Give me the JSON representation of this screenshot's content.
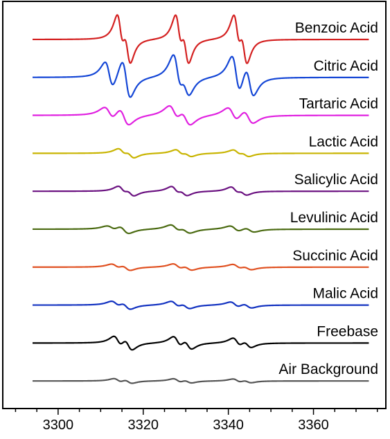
{
  "chart_data": {
    "type": "line",
    "title": "",
    "xlabel": "",
    "ylabel": "",
    "xlim": [
      3287,
      3377
    ],
    "x_ticks": [
      3300,
      3320,
      3340,
      3360
    ],
    "x_tick_labels": [
      "3300",
      "3320",
      "3340",
      "3360"
    ],
    "x_minor_step": 5,
    "x_range_plotted": [
      3294,
      3373
    ],
    "stacked_offset_traces": true,
    "grid": false,
    "legend": "none (series labels placed at right above each trace)",
    "series": [
      {
        "name": "Benzoic Acid",
        "color": "#d42020",
        "lines": [
          [
            3314.6,
            1.0
          ],
          [
            3316.3,
            0.95
          ],
          [
            3328.3,
            1.0
          ],
          [
            3330.0,
            0.95
          ],
          [
            3342.0,
            1.0
          ],
          [
            3343.7,
            0.95
          ]
        ],
        "width": 0.8
      },
      {
        "name": "Citric Acid",
        "color": "#1446d6",
        "lines": [
          [
            3312.0,
            0.7
          ],
          [
            3316.0,
            1.0
          ],
          [
            3328.0,
            1.0
          ],
          [
            3330.0,
            0.6
          ],
          [
            3341.8,
            1.0
          ],
          [
            3345.0,
            0.8
          ]
        ],
        "width": 1.0
      },
      {
        "name": "Tartaric Acid",
        "color": "#e020e0",
        "lines": [
          [
            3312.0,
            0.33
          ],
          [
            3315.5,
            0.45
          ],
          [
            3327.2,
            0.4
          ],
          [
            3330.0,
            0.4
          ],
          [
            3341.0,
            0.35
          ],
          [
            3344.7,
            0.35
          ]
        ],
        "width": 1.2
      },
      {
        "name": "Lactic Acid",
        "color": "#c8b400",
        "lines": [
          [
            3315.0,
            0.18
          ],
          [
            3317.0,
            0.18
          ],
          [
            3328.5,
            0.15
          ],
          [
            3330.5,
            0.12
          ],
          [
            3342.0,
            0.14
          ],
          [
            3344.0,
            0.12
          ]
        ],
        "width": 1.0
      },
      {
        "name": "Salicylic Acid",
        "color": "#6a1080",
        "lines": [
          [
            3315.0,
            0.2
          ],
          [
            3317.0,
            0.18
          ],
          [
            3327.5,
            0.2
          ],
          [
            3329.5,
            0.16
          ],
          [
            3341.5,
            0.18
          ],
          [
            3343.5,
            0.14
          ]
        ],
        "width": 1.0
      },
      {
        "name": "Levulinic Acid",
        "color": "#4a6a10",
        "lines": [
          [
            3312.5,
            0.12
          ],
          [
            3315.5,
            0.2
          ],
          [
            3327.5,
            0.18
          ],
          [
            3330.0,
            0.15
          ],
          [
            3341.5,
            0.15
          ],
          [
            3345.0,
            0.12
          ]
        ],
        "width": 1.2
      },
      {
        "name": "Succinic Acid",
        "color": "#e05020",
        "lines": [
          [
            3313.5,
            0.12
          ],
          [
            3316.0,
            0.14
          ],
          [
            3328.0,
            0.14
          ],
          [
            3330.5,
            0.12
          ],
          [
            3342.0,
            0.12
          ],
          [
            3344.5,
            0.1
          ]
        ],
        "width": 1.1
      },
      {
        "name": "Malic Acid",
        "color": "#1030c0",
        "lines": [
          [
            3313.5,
            0.15
          ],
          [
            3316.0,
            0.18
          ],
          [
            3327.5,
            0.16
          ],
          [
            3330.0,
            0.14
          ],
          [
            3341.5,
            0.14
          ],
          [
            3344.5,
            0.12
          ]
        ],
        "width": 1.1
      },
      {
        "name": "Freebase",
        "color": "#000000",
        "lines": [
          [
            3314.0,
            0.28
          ],
          [
            3316.5,
            0.3
          ],
          [
            3328.0,
            0.28
          ],
          [
            3330.5,
            0.25
          ],
          [
            3342.0,
            0.22
          ],
          [
            3344.5,
            0.18
          ]
        ],
        "width": 1.0
      },
      {
        "name": "Air Background",
        "color": "#555555",
        "lines": [
          [
            3314.0,
            0.1
          ],
          [
            3316.5,
            0.1
          ],
          [
            3328.0,
            0.1
          ],
          [
            3330.5,
            0.08
          ],
          [
            3342.0,
            0.09
          ],
          [
            3344.5,
            0.07
          ]
        ],
        "width": 1.0
      }
    ]
  }
}
